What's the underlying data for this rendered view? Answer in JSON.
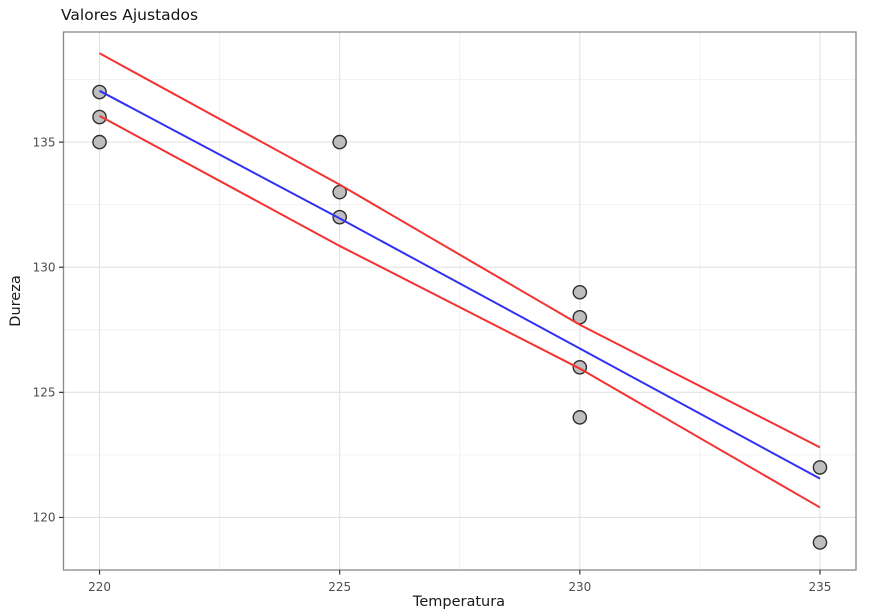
{
  "chart_data": {
    "type": "scatter",
    "title": "Valores Ajustados",
    "xlabel": "Temperatura",
    "ylabel": "Dureza",
    "x_ticks": [
      220,
      225,
      230,
      235
    ],
    "y_ticks": [
      135,
      130,
      125,
      120
    ],
    "x_minor_ticks": [
      222.5,
      227.5,
      232.5
    ],
    "y_minor_ticks": [
      137.5,
      132.5,
      127.5,
      122.5
    ],
    "xlim": [
      219.25,
      235.75
    ],
    "ylim": [
      117.9,
      139.4
    ],
    "grid": "major and minor, light gray, panel bordered",
    "legend": "none",
    "points": [
      {
        "x": 220,
        "y": 137
      },
      {
        "x": 220,
        "y": 136
      },
      {
        "x": 220,
        "y": 135
      },
      {
        "x": 225,
        "y": 135
      },
      {
        "x": 225,
        "y": 133
      },
      {
        "x": 225,
        "y": 132
      },
      {
        "x": 230,
        "y": 129
      },
      {
        "x": 230,
        "y": 128
      },
      {
        "x": 230,
        "y": 126
      },
      {
        "x": 230,
        "y": 124
      },
      {
        "x": 235,
        "y": 122
      },
      {
        "x": 235,
        "y": 119
      }
    ],
    "series": [
      {
        "name": "upper-confidence-band",
        "color": "#F53131",
        "x": [
          220,
          225,
          230,
          235
        ],
        "y": [
          138.55,
          133.3,
          127.7,
          122.8
        ]
      },
      {
        "name": "fitted-regression-line",
        "color": "#3131F5",
        "x": [
          220,
          225,
          230,
          235
        ],
        "y": [
          137.05,
          131.95,
          126.75,
          121.55
        ]
      },
      {
        "name": "lower-confidence-band",
        "color": "#F53131",
        "x": [
          220,
          225,
          230,
          235
        ],
        "y": [
          136.05,
          130.85,
          125.95,
          120.4
        ]
      }
    ],
    "point_style": {
      "fill": "#BEBEBE",
      "stroke": "#2E2E2E",
      "radius": 6.6
    },
    "colors": {
      "grid_major": "#E2E2E2",
      "grid_minor": "#F0F0F0",
      "panel_border": "#898989",
      "panel_background": "#FFFFFF",
      "tick_mark": "#333333",
      "tick_label": "#4D4D4D"
    }
  }
}
